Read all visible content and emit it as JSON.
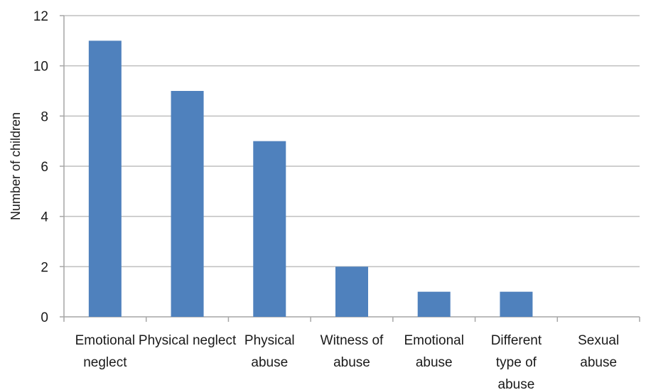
{
  "chart_data": {
    "type": "bar",
    "title": "",
    "xlabel": "",
    "ylabel": "Number of children",
    "categories": [
      [
        "Emotional",
        "neglect"
      ],
      [
        "Physical neglect"
      ],
      [
        "Physical",
        "abuse"
      ],
      [
        "Witness of",
        "abuse"
      ],
      [
        "Emotional",
        "abuse"
      ],
      [
        "Different",
        "type of",
        "abuse"
      ],
      [
        "Sexual",
        "abuse"
      ]
    ],
    "values": [
      11,
      9,
      7,
      2,
      1,
      1,
      0
    ],
    "ylim": [
      0,
      12
    ],
    "yticks": [
      0,
      2,
      4,
      6,
      8,
      10,
      12
    ],
    "grid": true,
    "legend": "none",
    "bar_color": "#4f81bd"
  }
}
